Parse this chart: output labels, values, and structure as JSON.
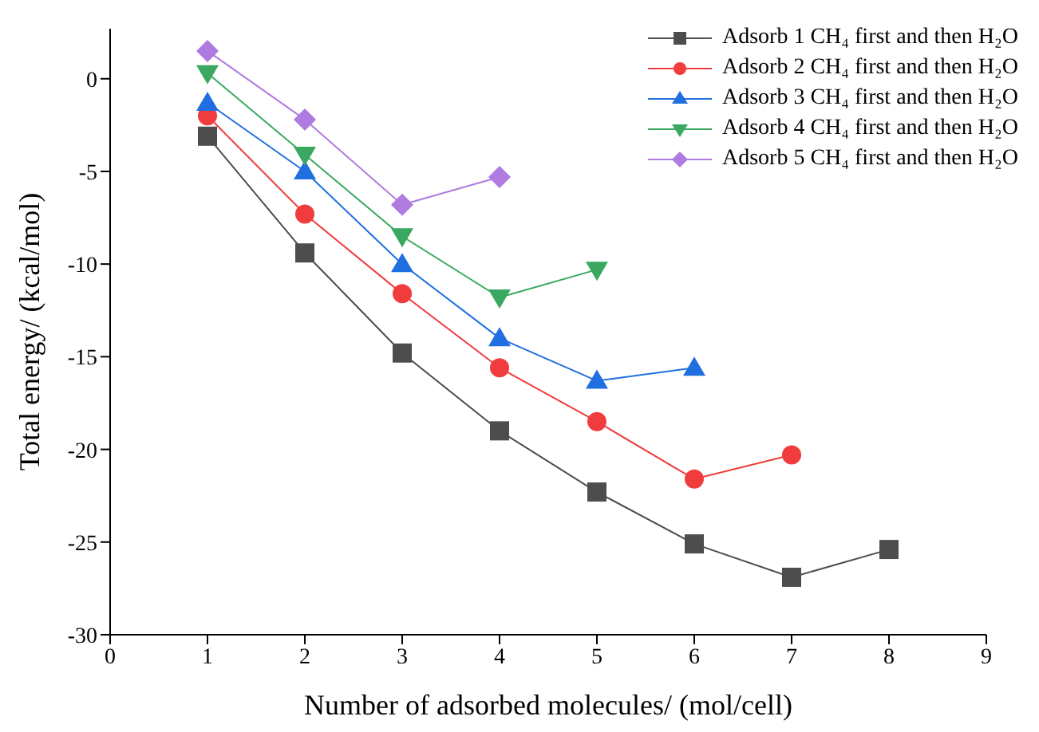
{
  "chart_data": {
    "type": "line",
    "xlabel": "Number of adsorbed molecules/ (mol/cell)",
    "ylabel": "Total energy/ (kcal/mol)",
    "xlim": [
      0,
      9
    ],
    "xticks": [
      0,
      1,
      2,
      3,
      4,
      5,
      6,
      7,
      8,
      9
    ],
    "ylim": [
      -30,
      2.7
    ],
    "yticks": [
      -30,
      -25,
      -20,
      -15,
      -10,
      -5,
      0
    ],
    "grid": false,
    "legend": "top right",
    "line_style": "solid",
    "series": [
      {
        "name": "Adsorb 1 CH₄ first and then H₂O",
        "color": "#4d4d4d",
        "marker": "square",
        "x": [
          1,
          2,
          3,
          4,
          5,
          6,
          7,
          8
        ],
        "values": [
          -3.1,
          -9.4,
          -14.8,
          -19.0,
          -22.3,
          -25.1,
          -26.9,
          -25.4
        ]
      },
      {
        "name": "Adsorb 2 CH₄ first and then H₂O",
        "color": "#f03c3c",
        "marker": "circle",
        "x": [
          1,
          2,
          3,
          4,
          5,
          6,
          7
        ],
        "values": [
          -2.0,
          -7.3,
          -11.6,
          -15.6,
          -18.5,
          -21.6,
          -20.3
        ]
      },
      {
        "name": "Adsorb 3 CH₄ first and then H₂O",
        "color": "#1f6fe0",
        "marker": "triangle",
        "x": [
          1,
          2,
          3,
          4,
          5,
          6
        ],
        "values": [
          -1.3,
          -5.0,
          -10.0,
          -14.0,
          -16.3,
          -15.6
        ]
      },
      {
        "name": "Adsorb 4 CH₄ first and then H₂O",
        "color": "#3aa860",
        "marker": "triangle-down",
        "x": [
          1,
          2,
          3,
          4,
          5
        ],
        "values": [
          0.3,
          -4.1,
          -8.5,
          -11.8,
          -10.3
        ]
      },
      {
        "name": "Adsorb 5 CH₄ first and then H₂O",
        "color": "#b07be0",
        "marker": "diamond",
        "x": [
          1,
          2,
          3,
          4
        ],
        "values": [
          1.5,
          -2.2,
          -6.8,
          -5.3
        ]
      }
    ]
  }
}
